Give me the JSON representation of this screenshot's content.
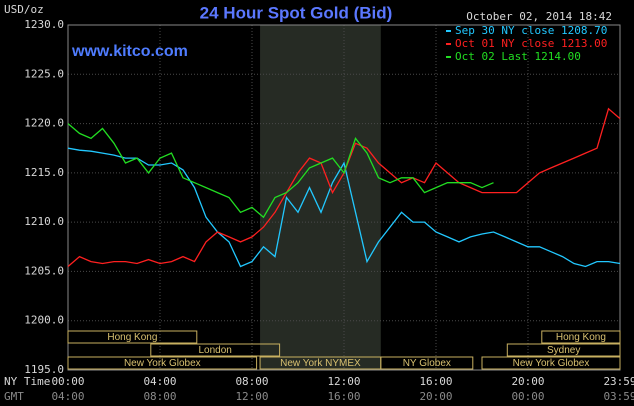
{
  "chart_data": {
    "type": "line",
    "title": "24 Hour Spot Gold (Bid)",
    "y_label": "USD/oz",
    "timestamp": "October 02, 2014 18:42",
    "watermark": "www.kitco.com",
    "x_label": "NY Time",
    "x2_label": "GMT",
    "x": [
      0,
      0.5,
      1,
      1.5,
      2,
      2.5,
      3,
      3.5,
      4,
      4.5,
      5,
      5.5,
      6,
      6.5,
      7,
      7.5,
      8,
      8.5,
      9,
      9.5,
      10,
      10.5,
      11,
      11.5,
      12,
      12.5,
      13,
      13.5,
      14,
      14.5,
      15,
      15.5,
      16,
      16.5,
      17,
      17.5,
      18,
      18.5,
      19,
      19.5,
      20,
      20.5,
      21,
      21.5,
      22,
      22.5,
      23,
      23.5,
      24
    ],
    "xlim": [
      0,
      24
    ],
    "xticks": [
      {
        "value": 0,
        "label": "00:00"
      },
      {
        "value": 4,
        "label": "04:00"
      },
      {
        "value": 8,
        "label": "08:00"
      },
      {
        "value": 12,
        "label": "12:00"
      },
      {
        "value": 16,
        "label": "16:00"
      },
      {
        "value": 20,
        "label": "20:00"
      },
      {
        "value": 24,
        "label": "23:59"
      }
    ],
    "x2ticks": [
      {
        "value": 0,
        "label": "04:00"
      },
      {
        "value": 4,
        "label": "08:00"
      },
      {
        "value": 8,
        "label": "12:00"
      },
      {
        "value": 12,
        "label": "16:00"
      },
      {
        "value": 16,
        "label": "20:00"
      },
      {
        "value": 20,
        "label": "00:00"
      },
      {
        "value": 24,
        "label": "03:59"
      }
    ],
    "ylim": [
      1195,
      1230
    ],
    "yticks": [
      {
        "value": 1195,
        "label": "1195.0"
      },
      {
        "value": 1200,
        "label": "1200.0"
      },
      {
        "value": 1205,
        "label": "1205.0"
      },
      {
        "value": 1210,
        "label": "1210.0"
      },
      {
        "value": 1215,
        "label": "1215.0"
      },
      {
        "value": 1220,
        "label": "1220.0"
      },
      {
        "value": 1225,
        "label": "1225.0"
      },
      {
        "value": 1230,
        "label": "1230.0"
      }
    ],
    "grid": true,
    "legend": "upper right",
    "series": [
      {
        "name": "Sep 30 NY close 1208.70",
        "color": "#22c8ff",
        "values": [
          1217.5,
          1217.3,
          1217.2,
          1217.0,
          1216.8,
          1216.5,
          1216.5,
          1215.8,
          1215.8,
          1216.0,
          1215.3,
          1213.5,
          1210.5,
          1209.0,
          1208.0,
          1205.5,
          1206.0,
          1207.5,
          1206.5,
          1212.5,
          1211.0,
          1213.5,
          1211.0,
          1214.0,
          1216.0,
          1211.0,
          1206.0,
          1208.0,
          1209.5,
          1211.0,
          1210.0,
          1210.0,
          1209.0,
          1208.5,
          1208.0,
          1208.5,
          1208.8,
          1209.0,
          1208.5,
          1208.0,
          1207.5,
          1207.5,
          1207.0,
          1206.5,
          1205.8,
          1205.5,
          1206.0,
          1206.0,
          1205.8
        ]
      },
      {
        "name": "Oct 01 NY close 1213.00",
        "color": "#ff2020",
        "values": [
          1205.5,
          1206.5,
          1206.0,
          1205.8,
          1206.0,
          1206.0,
          1205.8,
          1206.2,
          1205.8,
          1206.0,
          1206.5,
          1206.0,
          1208.0,
          1209.0,
          1208.5,
          1208.0,
          1208.5,
          1209.5,
          1211.0,
          1213.0,
          1215.0,
          1216.5,
          1216.0,
          1213.0,
          1215.0,
          1218.0,
          1217.5,
          1216.0,
          1215.0,
          1214.0,
          1214.5,
          1214.0,
          1216.0,
          1215.0,
          1214.0,
          1213.5,
          1213.0,
          1213.0,
          1213.0,
          1213.0,
          1214.0,
          1215.0,
          1215.5,
          1216.0,
          1216.5,
          1217.0,
          1217.5,
          1221.5,
          1220.5
        ]
      },
      {
        "name": "Oct 02 Last 1214.00",
        "color": "#22dd22",
        "values": [
          1220.0,
          1219.0,
          1218.5,
          1219.5,
          1218.0,
          1216.0,
          1216.5,
          1215.0,
          1216.5,
          1217.0,
          1214.5,
          1214.0,
          1213.5,
          1213.0,
          1212.5,
          1211.0,
          1211.5,
          1210.5,
          1212.5,
          1213.0,
          1214.0,
          1215.5,
          1216.0,
          1216.5,
          1215.0,
          1218.5,
          1217.0,
          1214.5,
          1214.0,
          1214.5,
          1214.5,
          1213.0,
          1213.5,
          1214.0,
          1214.0,
          1214.0,
          1213.5,
          1214.0,
          null,
          null,
          null,
          null,
          null,
          null,
          null,
          null,
          null,
          null,
          null
        ]
      }
    ],
    "sessions": [
      {
        "label": "Hong Kong",
        "start": 0,
        "end": 5.6
      },
      {
        "label": "London",
        "start": 3.6,
        "end": 9.2
      },
      {
        "label": "New York Globex",
        "start": 0,
        "end": 8.2
      },
      {
        "label": "New York NYMEX",
        "start": 8.35,
        "end": 13.6
      },
      {
        "label": "NY Globex",
        "start": 13.6,
        "end": 17.6
      },
      {
        "label": "Hong Kong",
        "start": 20.6,
        "end": 24
      },
      {
        "label": "Sydney",
        "start": 19.1,
        "end": 24
      },
      {
        "label": "New York Globex",
        "start": 18.0,
        "end": 24
      }
    ]
  }
}
